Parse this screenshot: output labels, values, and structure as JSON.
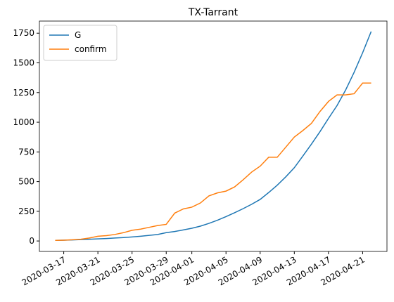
{
  "chart_data": {
    "type": "line",
    "title": "TX-Tarrant",
    "x": [
      "2020-03-16",
      "2020-03-17",
      "2020-03-18",
      "2020-03-19",
      "2020-03-20",
      "2020-03-21",
      "2020-03-22",
      "2020-03-23",
      "2020-03-24",
      "2020-03-25",
      "2020-03-26",
      "2020-03-27",
      "2020-03-28",
      "2020-03-29",
      "2020-03-30",
      "2020-03-31",
      "2020-04-01",
      "2020-04-02",
      "2020-04-03",
      "2020-04-04",
      "2020-04-05",
      "2020-04-06",
      "2020-04-07",
      "2020-04-08",
      "2020-04-09",
      "2020-04-10",
      "2020-04-11",
      "2020-04-12",
      "2020-04-13",
      "2020-04-14",
      "2020-04-15",
      "2020-04-16",
      "2020-04-17",
      "2020-04-18",
      "2020-04-19",
      "2020-04-20",
      "2020-04-21",
      "2020-04-22"
    ],
    "series": [
      {
        "name": "G",
        "color": "#1f77b4",
        "values": [
          5,
          7,
          9,
          12,
          15,
          18,
          21,
          25,
          29,
          34,
          40,
          47,
          55,
          70,
          80,
          93,
          107,
          125,
          148,
          175,
          205,
          238,
          272,
          309,
          350,
          408,
          470,
          540,
          617,
          715,
          815,
          920,
          1032,
          1140,
          1270,
          1420,
          1585,
          1764
        ]
      },
      {
        "name": "confirm",
        "color": "#ff7f0e",
        "values": [
          5,
          7,
          10,
          15,
          25,
          40,
          45,
          55,
          70,
          90,
          100,
          115,
          130,
          140,
          235,
          270,
          285,
          320,
          380,
          405,
          420,
          455,
          515,
          580,
          630,
          705,
          705,
          790,
          875,
          930,
          990,
          1090,
          1175,
          1230,
          1230,
          1240,
          1330,
          1330
        ]
      }
    ],
    "xlim": [
      "2020-03-16",
      "2020-04-22"
    ],
    "xticks": [
      "2020-03-17",
      "2020-03-21",
      "2020-03-25",
      "2020-03-29",
      "2020-04-01",
      "2020-04-05",
      "2020-04-09",
      "2020-04-13",
      "2020-04-17",
      "2020-04-21"
    ],
    "ylim": [
      -88,
      1852
    ],
    "yticks": [
      0,
      250,
      500,
      750,
      1000,
      1250,
      1500,
      1750
    ],
    "legend": "upper left"
  }
}
